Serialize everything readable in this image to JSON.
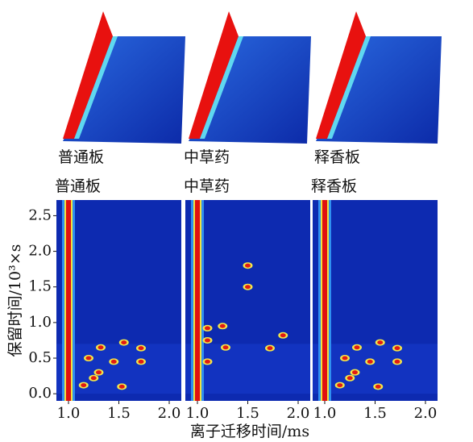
{
  "surface_plots": [
    {
      "title": "普通板"
    },
    {
      "title": "中草药"
    },
    {
      "title": "释香板"
    }
  ],
  "chart_data": [
    {
      "type": "heatmap",
      "title": "普通板",
      "xlim": [
        0.88,
        2.12
      ],
      "ylim": [
        -0.1,
        2.72
      ],
      "xticks": [
        {
          "value": 1.0,
          "label": "1.0"
        },
        1.5,
        {
          "value": 2.0,
          "label": "2.0"
        }
      ],
      "yticks": [
        {
          "value": 0.0,
          "label": "0.0"
        },
        0.5,
        {
          "value": 1.0,
          "label": "1.0"
        },
        1.5,
        {
          "value": 2.0,
          "label": "2.0"
        },
        2.5
      ],
      "ylabel": "保留时间/10³×s",
      "reactant_ion_peak": 1.0,
      "spots": {
        "x": [
          1.32,
          1.72,
          1.55,
          1.2,
          1.45,
          1.72,
          1.3,
          1.25,
          1.53,
          1.15
        ],
        "y": [
          0.65,
          0.64,
          0.72,
          0.5,
          0.45,
          0.45,
          0.3,
          0.22,
          0.1,
          0.12
        ]
      }
    },
    {
      "type": "heatmap",
      "title": "中草药",
      "xlim": [
        0.88,
        2.12
      ],
      "ylim": [
        -0.1,
        2.72
      ],
      "xticks": [
        {
          "value": 1.0,
          "label": "1.0"
        },
        1.5,
        {
          "value": 2.0,
          "label": "2.0"
        }
      ],
      "xlabel": "离子迁移时间/ms",
      "reactant_ion_peak": 1.0,
      "spots": {
        "x": [
          1.1,
          1.1,
          1.28,
          1.85,
          1.72,
          1.25,
          1.5,
          1.5,
          1.1
        ],
        "y": [
          0.92,
          0.75,
          0.65,
          0.82,
          0.64,
          0.95,
          1.8,
          1.5,
          0.45
        ]
      }
    },
    {
      "type": "heatmap",
      "title": "释香板",
      "xlim": [
        0.88,
        2.12
      ],
      "ylim": [
        -0.1,
        2.72
      ],
      "xticks": [
        {
          "value": 1.0,
          "label": "1.0"
        },
        1.5,
        {
          "value": 2.0,
          "label": "2.0"
        }
      ],
      "reactant_ion_peak": 1.0,
      "spots": {
        "x": [
          1.32,
          1.72,
          1.55,
          1.2,
          1.45,
          1.72,
          1.3,
          1.25,
          1.53,
          1.15
        ],
        "y": [
          0.65,
          0.64,
          0.72,
          0.5,
          0.45,
          0.45,
          0.3,
          0.22,
          0.1,
          0.12
        ]
      }
    }
  ]
}
